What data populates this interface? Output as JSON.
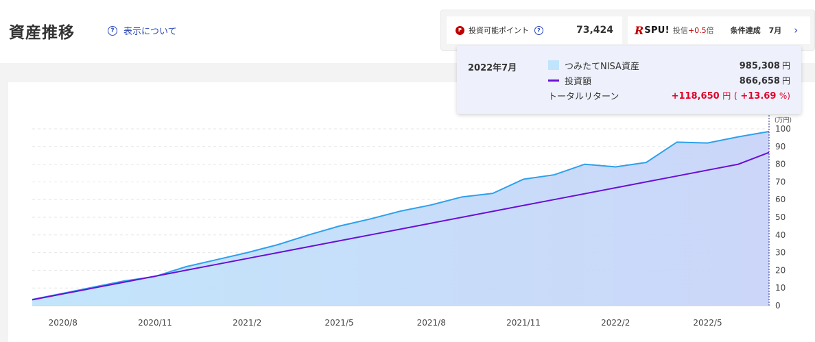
{
  "page": {
    "title": "資産推移",
    "about_link": "表示について"
  },
  "points": {
    "icon": "P",
    "label": "投資可能ポイント",
    "value": "73,424"
  },
  "spu": {
    "logo_r": "R",
    "logo": "SPU!",
    "label": "投信",
    "bonus": "+0.5",
    "bai": "倍",
    "condition": "条件達成",
    "month": "7月"
  },
  "tooltip": {
    "date": "2022年7月",
    "asset_label": "つみたてNISA資産",
    "asset_value": "985,308",
    "invest_label": "投資額",
    "invest_value": "866,658",
    "return_label": "トータルリターン",
    "return_value": "+118,650",
    "return_pct": "+13.69",
    "yen": "円",
    "open_paren": "(",
    "pct_unit": "%)"
  },
  "colors": {
    "asset_line": "#2ea0ee",
    "asset_fill": "#bfe4fb",
    "asset_fill_right": "#c9d4f8",
    "invest_line": "#6a10d6",
    "return_text": "#e0002a",
    "link": "#2a47b8"
  },
  "chart_data": {
    "type": "area",
    "y_unit_label": "(万円)",
    "ylim": [
      0,
      100
    ],
    "yticks": [
      0,
      10,
      20,
      30,
      40,
      50,
      60,
      70,
      80,
      90,
      100
    ],
    "grid": true,
    "x_tick_labels": [
      "2020/8",
      "2020/11",
      "2021/2",
      "2021/5",
      "2021/8",
      "2021/11",
      "2022/2",
      "2022/5"
    ],
    "x_tick_index": [
      1,
      4,
      7,
      10,
      13,
      16,
      19,
      22
    ],
    "months": [
      "2020/7",
      "2020/8",
      "2020/9",
      "2020/10",
      "2020/11",
      "2020/12",
      "2021/1",
      "2021/2",
      "2021/3",
      "2021/4",
      "2021/5",
      "2021/6",
      "2021/7",
      "2021/8",
      "2021/9",
      "2021/10",
      "2021/11",
      "2021/12",
      "2022/1",
      "2022/2",
      "2022/3",
      "2022/4",
      "2022/5",
      "2022/6",
      "2022/7"
    ],
    "series": [
      {
        "name": "つみたてNISA資産",
        "type": "area",
        "values": [
          3.5,
          7,
          10.5,
          14,
          16.5,
          22,
          26,
          30,
          34.5,
          40,
          45,
          49,
          53.5,
          57,
          61.5,
          63.5,
          71.5,
          74,
          80,
          78.5,
          81,
          92.5,
          92,
          95.5,
          98.5
        ]
      },
      {
        "name": "投資額",
        "type": "line",
        "values": [
          3.33,
          6.67,
          10,
          13.33,
          16.67,
          20,
          23.33,
          26.67,
          30,
          33.33,
          36.67,
          40,
          43.33,
          46.67,
          50,
          53.33,
          56.67,
          60,
          63.33,
          66.67,
          70,
          73.33,
          76.67,
          80,
          86.67
        ]
      }
    ]
  }
}
